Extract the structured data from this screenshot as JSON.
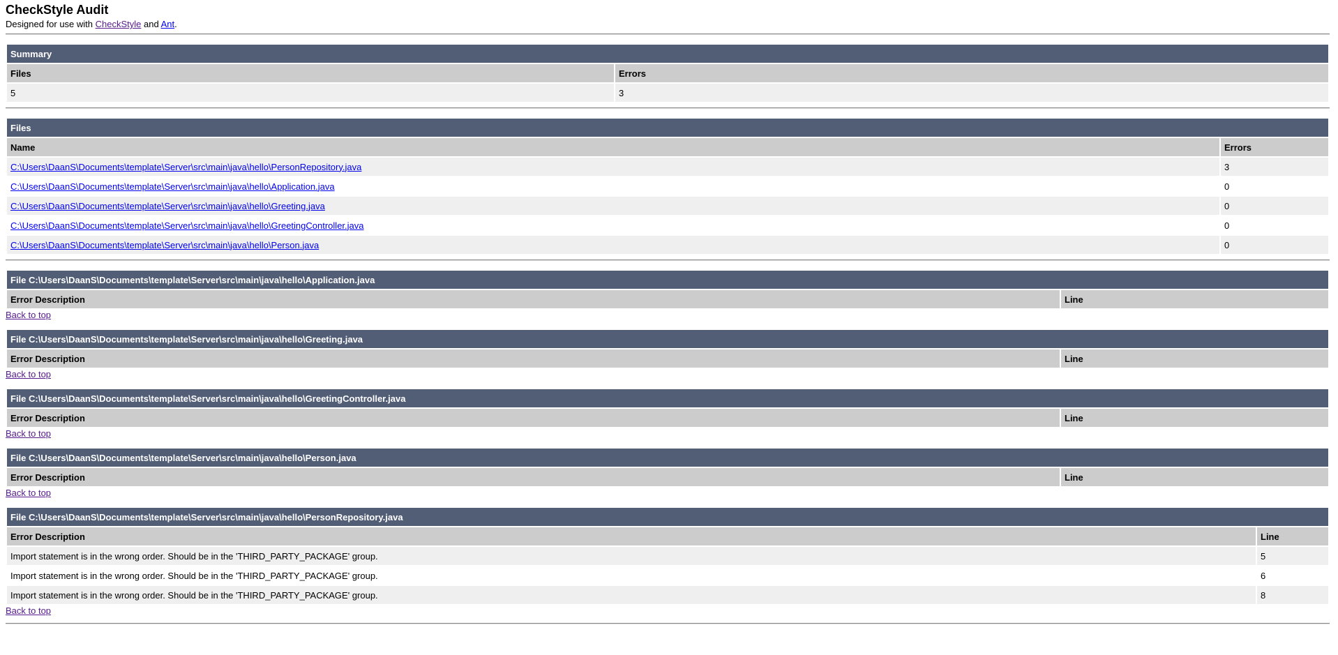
{
  "header": {
    "title": "CheckStyle Audit",
    "subtitle_prefix": "Designed for use with ",
    "checkstyle_link": "CheckStyle",
    "and": " and ",
    "ant_link": "Ant",
    "suffix": "."
  },
  "summary": {
    "caption": "Summary",
    "col_files": "Files",
    "col_errors": "Errors",
    "files": "5",
    "errors": "3"
  },
  "files": {
    "caption": "Files",
    "col_name": "Name",
    "col_errors": "Errors",
    "rows": [
      {
        "name": "C:\\Users\\DaanS\\Documents\\template\\Server\\src\\main\\java\\hello\\PersonRepository.java",
        "errors": "3"
      },
      {
        "name": "C:\\Users\\DaanS\\Documents\\template\\Server\\src\\main\\java\\hello\\Application.java",
        "errors": "0"
      },
      {
        "name": "C:\\Users\\DaanS\\Documents\\template\\Server\\src\\main\\java\\hello\\Greeting.java",
        "errors": "0"
      },
      {
        "name": "C:\\Users\\DaanS\\Documents\\template\\Server\\src\\main\\java\\hello\\GreetingController.java",
        "errors": "0"
      },
      {
        "name": "C:\\Users\\DaanS\\Documents\\template\\Server\\src\\main\\java\\hello\\Person.java",
        "errors": "0"
      }
    ]
  },
  "details": {
    "col_desc": "Error Description",
    "col_line": "Line",
    "back_to_top": "Back to top",
    "sections": [
      {
        "title": "File C:\\Users\\DaanS\\Documents\\template\\Server\\src\\main\\java\\hello\\Application.java",
        "errors": []
      },
      {
        "title": "File C:\\Users\\DaanS\\Documents\\template\\Server\\src\\main\\java\\hello\\Greeting.java",
        "errors": []
      },
      {
        "title": "File C:\\Users\\DaanS\\Documents\\template\\Server\\src\\main\\java\\hello\\GreetingController.java",
        "errors": []
      },
      {
        "title": "File C:\\Users\\DaanS\\Documents\\template\\Server\\src\\main\\java\\hello\\Person.java",
        "errors": []
      },
      {
        "title": "File C:\\Users\\DaanS\\Documents\\template\\Server\\src\\main\\java\\hello\\PersonRepository.java",
        "errors": [
          {
            "desc": "Import statement is in the wrong order. Should be in the 'THIRD_PARTY_PACKAGE' group.",
            "line": "5"
          },
          {
            "desc": "Import statement is in the wrong order. Should be in the 'THIRD_PARTY_PACKAGE' group.",
            "line": "6"
          },
          {
            "desc": "Import statement is in the wrong order. Should be in the 'THIRD_PARTY_PACKAGE' group.",
            "line": "8"
          }
        ]
      }
    ]
  },
  "colors": {
    "caption_bg": "#525D76",
    "header_bg": "#CCCCCC",
    "row_alt_bg": "#EFEFEF",
    "link": "#0000EE",
    "visited_link": "#551A8B"
  }
}
